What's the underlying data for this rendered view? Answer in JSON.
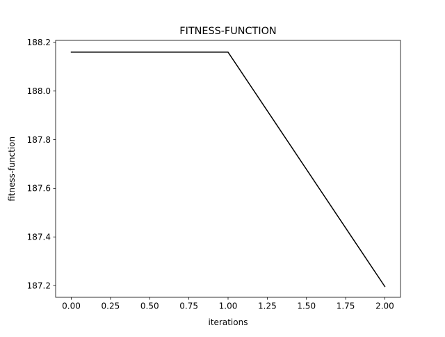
{
  "chart_data": {
    "type": "line",
    "title": "FITNESS-FUNCTION",
    "xlabel": "iterations",
    "ylabel": "fitness-function",
    "xlim": [
      -0.1,
      2.1
    ],
    "ylim": [
      187.1516,
      188.2084
    ],
    "xticks": [
      0.0,
      0.25,
      0.5,
      0.75,
      1.0,
      1.25,
      1.5,
      1.75,
      2.0
    ],
    "xtick_labels": [
      "0.00",
      "0.25",
      "0.50",
      "0.75",
      "1.00",
      "1.25",
      "1.50",
      "1.75",
      "2.00"
    ],
    "yticks": [
      187.2,
      187.4,
      187.6,
      187.8,
      188.0,
      188.2
    ],
    "ytick_labels": [
      "187.2",
      "187.4",
      "187.6",
      "187.8",
      "188.0",
      "188.2"
    ],
    "grid": false,
    "series": [
      {
        "x": [
          0,
          1,
          2
        ],
        "y": [
          188.16,
          188.16,
          187.196
        ],
        "color": "#000000"
      }
    ]
  }
}
